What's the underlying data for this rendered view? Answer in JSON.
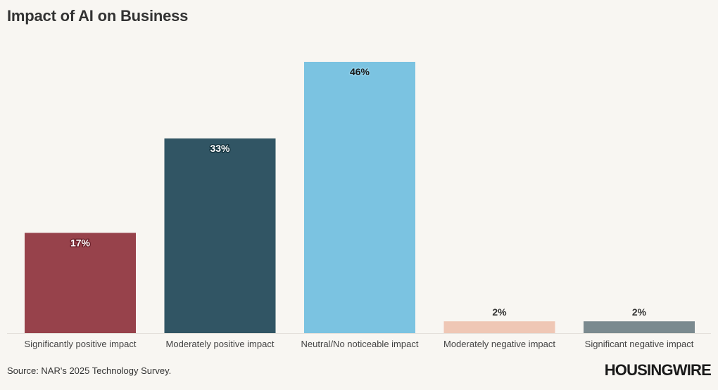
{
  "title": "Impact of AI on Business",
  "source": "Source: NAR's 2025 Technology Survey.",
  "logo": "HOUSINGWIRE",
  "chart_data": {
    "type": "bar",
    "title": "Impact of AI on Business",
    "xlabel": "",
    "ylabel": "",
    "categories": [
      "Significantly positive impact",
      "Moderately positive impact",
      "Neutral/No noticeable impact",
      "Moderately negative impact",
      "Significant negative impact"
    ],
    "values": [
      17,
      33,
      46,
      2,
      2
    ],
    "value_labels": [
      "17%",
      "33%",
      "46%",
      "2%",
      "2%"
    ],
    "colors": [
      "#97424b",
      "#315564",
      "#7bc3e1",
      "#efc7b5",
      "#7b8a8f"
    ],
    "ylim": [
      0,
      46
    ],
    "grid": false,
    "legend": "none"
  }
}
